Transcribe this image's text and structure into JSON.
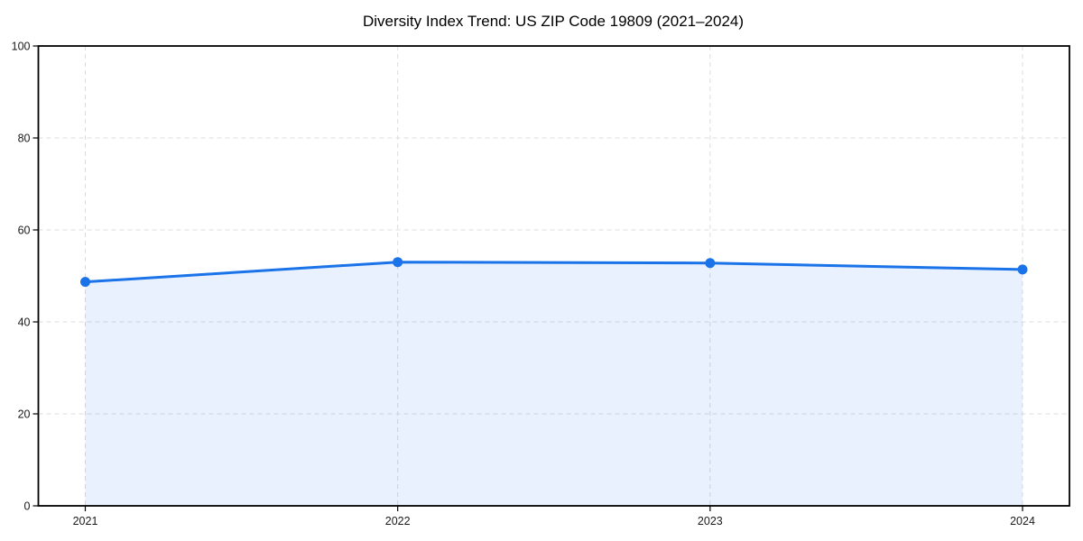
{
  "page": {
    "background_color": "#ffffff"
  },
  "chart_data": {
    "type": "area",
    "title": "Diversity Index Trend: US ZIP Code 19809 (2021–2024)",
    "series_name": "Diversity Index",
    "categories": [
      "2021",
      "2022",
      "2023",
      "2024"
    ],
    "values": [
      48.7,
      53.0,
      52.8,
      51.4
    ],
    "xlabel": "",
    "ylabel": "",
    "ylim": [
      0,
      100
    ],
    "yticks": [
      0,
      20,
      40,
      60,
      80,
      100
    ],
    "grid": "dashed",
    "legend": "none",
    "line_color": "#1a73e8",
    "marker": "circle",
    "marker_color": "#1a73e8",
    "fill_color": "#1a73e8",
    "fill_opacity": 0.1,
    "grid_color": "#dcdcdc",
    "frame_color": "#000000",
    "text_color": "#1a1a1a"
  }
}
